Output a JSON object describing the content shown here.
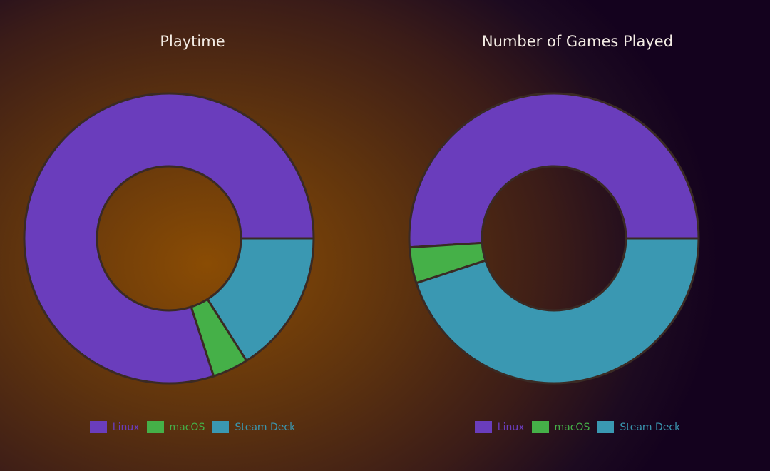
{
  "chart_data": [
    {
      "type": "pie",
      "donut": true,
      "title": "Playtime",
      "categories": [
        "Linux",
        "macOS",
        "Steam Deck"
      ],
      "values": [
        80,
        4,
        16
      ],
      "colors": [
        "#6a3dbc",
        "#45b048",
        "#3a98b2"
      ],
      "legend": "bottom"
    },
    {
      "type": "pie",
      "donut": true,
      "title": "Number of Games Played",
      "categories": [
        "Linux",
        "macOS",
        "Steam Deck"
      ],
      "values": [
        51,
        4,
        45
      ],
      "colors": [
        "#6a3dbc",
        "#45b048",
        "#3a98b2"
      ],
      "legend": "bottom"
    }
  ]
}
